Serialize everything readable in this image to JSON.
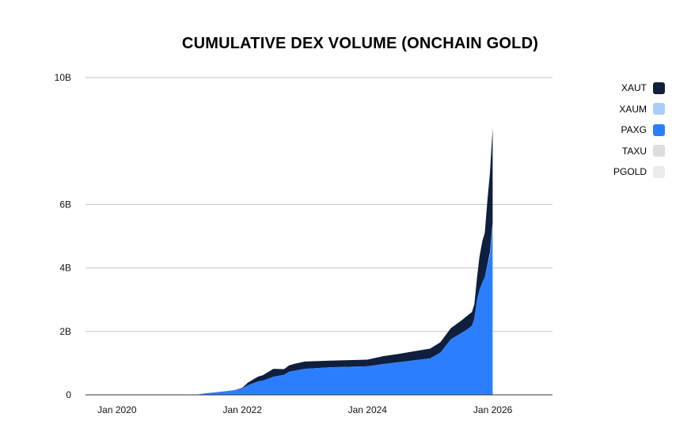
{
  "chart_data": {
    "type": "area",
    "stacked": true,
    "title": "CUMULATIVE DEX VOLUME (ONCHAIN GOLD)",
    "xlabel": "",
    "ylabel": "",
    "x_ticks": [
      "Jan 2020",
      "Jan 2022",
      "Jan 2024",
      "Jan 2026"
    ],
    "y_ticks": [
      "0",
      "2B",
      "4B",
      "6B",
      "10B"
    ],
    "ylim": [
      0,
      11000000000
    ],
    "xlim": [
      "2019-07-01",
      "2026-12-15"
    ],
    "grid": true,
    "legend_position": "top-right",
    "dates": [
      "2019-07-01",
      "2021-04-01",
      "2021-06-01",
      "2021-10-01",
      "2021-11-15",
      "2022-01-01",
      "2022-02-01",
      "2022-04-01",
      "2022-05-01",
      "2022-07-01",
      "2022-09-01",
      "2022-10-01",
      "2022-11-01",
      "2023-01-01",
      "2023-06-01",
      "2024-01-01",
      "2024-04-01",
      "2024-07-01",
      "2025-01-01",
      "2025-03-01",
      "2025-05-01",
      "2025-07-01",
      "2025-08-01",
      "2025-09-01",
      "2025-09-15",
      "2025-10-01",
      "2025-10-15",
      "2025-11-01",
      "2025-11-15",
      "2025-12-01",
      "2025-12-15",
      "2025-12-31"
    ],
    "series": [
      {
        "name": "XAUT",
        "color": "#0f1f3d",
        "values": [
          0,
          0,
          0,
          0,
          0,
          0.02,
          0.08,
          0.15,
          0.17,
          0.25,
          0.18,
          0.2,
          0.22,
          0.23,
          0.21,
          0.21,
          0.25,
          0.26,
          0.31,
          0.33,
          0.35,
          0.39,
          0.43,
          0.43,
          0.45,
          0.7,
          1.05,
          1.3,
          1.4,
          2.05,
          2.5,
          3.0
        ]
      },
      {
        "name": "XAUM",
        "color": "#a9cdfb",
        "values": [
          0,
          0,
          0,
          0,
          0,
          0,
          0,
          0,
          0,
          0,
          0,
          0,
          0,
          0,
          0,
          0,
          0,
          0,
          0,
          0,
          0,
          0,
          0,
          0,
          0,
          0,
          0,
          0,
          0,
          0.02,
          0.08,
          0.12
        ]
      },
      {
        "name": "PAXG",
        "color": "#2b7fff",
        "values": [
          0,
          0,
          0.05,
          0.12,
          0.15,
          0.2,
          0.3,
          0.42,
          0.45,
          0.57,
          0.63,
          0.73,
          0.76,
          0.82,
          0.87,
          0.9,
          0.97,
          1.03,
          1.15,
          1.33,
          1.75,
          1.95,
          2.05,
          2.18,
          2.4,
          3.0,
          3.3,
          3.55,
          3.7,
          4.1,
          4.4,
          5.3
        ]
      },
      {
        "name": "TAXU",
        "color": "#dcdcdc",
        "values": [
          0,
          0,
          0,
          0,
          0,
          0,
          0,
          0,
          0,
          0,
          0,
          0,
          0,
          0,
          0,
          0,
          0,
          0,
          0,
          0,
          0,
          0,
          0,
          0,
          0,
          0,
          0,
          0,
          0,
          0,
          0,
          0
        ]
      },
      {
        "name": "PGOLD",
        "color": "#ebebeb",
        "values": [
          0,
          0,
          0,
          0,
          0,
          0,
          0,
          0,
          0,
          0,
          0,
          0,
          0,
          0,
          0,
          0,
          0,
          0,
          0,
          0,
          0,
          0,
          0,
          0,
          0,
          0,
          0,
          0,
          0,
          0,
          0,
          0
        ]
      }
    ],
    "value_unit": "billions"
  },
  "legend": {
    "items": [
      {
        "label": "XAUT",
        "color": "#0f1f3d"
      },
      {
        "label": "XAUM",
        "color": "#a9cdfb"
      },
      {
        "label": "PAXG",
        "color": "#2b7fff"
      },
      {
        "label": "TAXU",
        "color": "#dcdcdc"
      },
      {
        "label": "PGOLD",
        "color": "#ebebeb"
      }
    ]
  }
}
